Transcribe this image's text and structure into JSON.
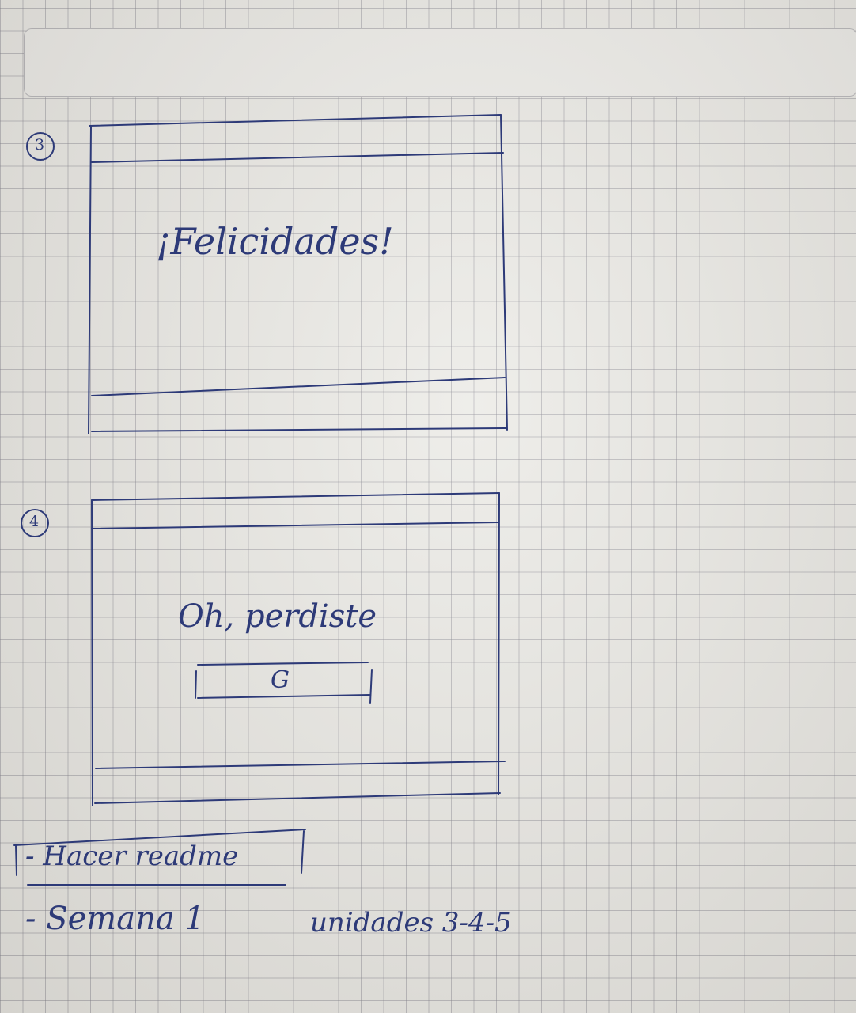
{
  "sketch": {
    "screen3": {
      "number": "3",
      "message": "¡Felicidades!"
    },
    "screen4": {
      "number": "4",
      "message": "Oh, perdiste",
      "button_label": "G"
    },
    "notes": {
      "line1": "- Hacer readme",
      "line2": "- Semana 1",
      "line2_extra": "unidades 3-4-5"
    },
    "ink_color": "#2d3a78"
  }
}
